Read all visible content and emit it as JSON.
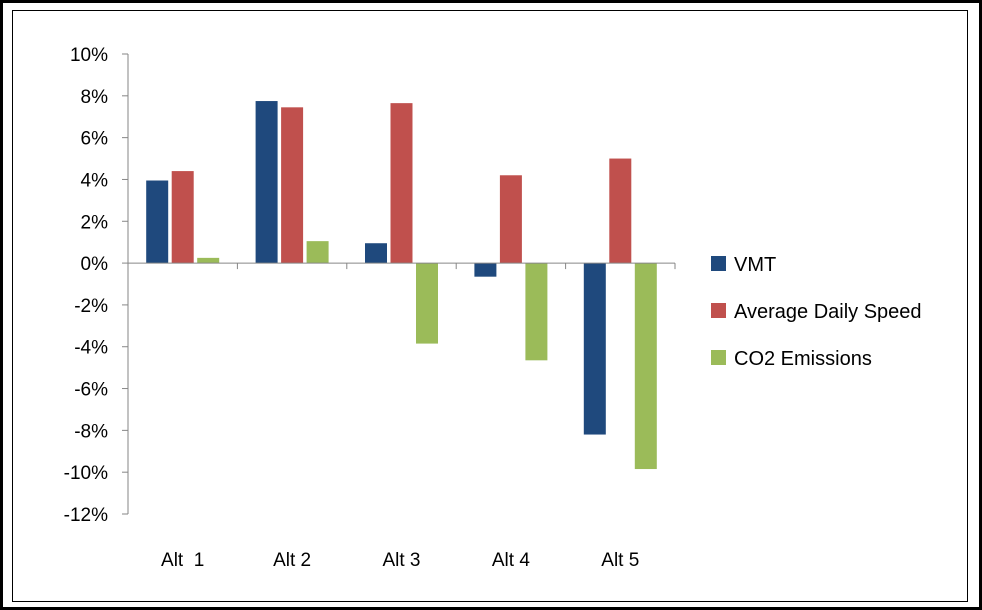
{
  "chart_data": {
    "type": "bar",
    "title": "",
    "xlabel": "",
    "ylabel": "",
    "categories": [
      "Alt  1",
      "Alt 2",
      "Alt 3",
      "Alt 4",
      "Alt 5"
    ],
    "series": [
      {
        "name": "VMT",
        "color": "#1F497D",
        "values": [
          3.95,
          7.75,
          0.95,
          -0.65,
          -8.2
        ]
      },
      {
        "name": "Average Daily Speed",
        "color": "#C0504D",
        "values": [
          4.4,
          7.45,
          7.65,
          4.2,
          5.0
        ]
      },
      {
        "name": "CO2 Emissions",
        "color": "#9BBB59",
        "values": [
          0.25,
          1.05,
          -3.85,
          -4.65,
          -9.85
        ]
      }
    ],
    "ylim": [
      -12,
      10
    ],
    "yticks": [
      "10%",
      "8%",
      "6%",
      "4%",
      "2%",
      "0%",
      "-2%",
      "-4%",
      "-6%",
      "-8%",
      "-10%",
      "-12%"
    ],
    "ytick_values": [
      10,
      8,
      6,
      4,
      2,
      0,
      -2,
      -4,
      -6,
      -8,
      -10,
      -12
    ],
    "grid": false,
    "legend_position": "right"
  }
}
